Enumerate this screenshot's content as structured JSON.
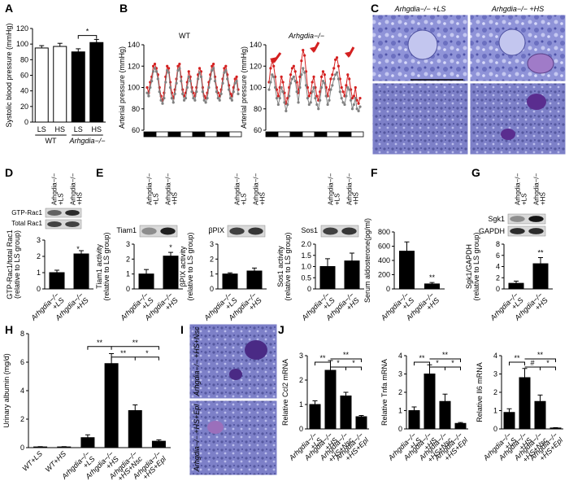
{
  "panel_letters": [
    "A",
    "B",
    "C",
    "D",
    "E",
    "F",
    "G",
    "H",
    "I",
    "J"
  ],
  "colors": {
    "red": "#d42020",
    "gray": "#808080",
    "histo_purple": "#7a7fc9",
    "black": "#000000",
    "white": "#ffffff"
  },
  "chart_data": [
    {
      "panel": "A",
      "type": "bar",
      "ylabel": "Systolic blood pressure (mmHg)",
      "ylim": [
        0,
        120
      ],
      "yticks": [
        "0",
        "20",
        "40",
        "60",
        "80",
        "100",
        "120"
      ],
      "categories": [
        "LS",
        "HS",
        "LS",
        "HS"
      ],
      "groups": [
        "WT",
        "Arhgdia−/−"
      ],
      "values": [
        95,
        97,
        90,
        102
      ],
      "errors": [
        3,
        4,
        4,
        4
      ],
      "fills": [
        "#ffffff",
        "#ffffff",
        "#000000",
        "#000000"
      ],
      "annotations": [
        "*"
      ]
    },
    {
      "panel": "B-WT",
      "type": "line",
      "title": "WT",
      "ylabel": "Arterial pressure (mmHg)",
      "ylim": [
        60,
        140
      ],
      "yticks": [
        "60",
        "80",
        "100",
        "120",
        "140"
      ],
      "series": [
        {
          "color": "red",
          "values": [
            100,
            95,
            105,
            110,
            120,
            122,
            118,
            112,
            100,
            92,
            88,
            95,
            110,
            120,
            118,
            105,
            95,
            90,
            98,
            108,
            120,
            122,
            110,
            98,
            92,
            95,
            105,
            115,
            110,
            100,
            95,
            92,
            100,
            112,
            118,
            115,
            100,
            92,
            90,
            95,
            105,
            112,
            120,
            122,
            110,
            100,
            95,
            92,
            98,
            108,
            118,
            120,
            112,
            102,
            94,
            92,
            100,
            108,
            110,
            98
          ]
        },
        {
          "color": "gray",
          "values": [
            95,
            92,
            100,
            106,
            115,
            118,
            115,
            108,
            96,
            88,
            85,
            90,
            105,
            116,
            114,
            100,
            90,
            86,
            94,
            104,
            116,
            118,
            106,
            94,
            88,
            90,
            100,
            110,
            106,
            96,
            90,
            88,
            96,
            108,
            114,
            110,
            96,
            88,
            86,
            90,
            100,
            108,
            116,
            118,
            106,
            96,
            90,
            88,
            94,
            104,
            114,
            116,
            108,
            98,
            90,
            88,
            96,
            104,
            106,
            94
          ]
        }
      ],
      "daynight_bar": [
        1,
        0,
        1,
        0,
        1,
        0,
        1,
        0
      ]
    },
    {
      "panel": "B-KO",
      "type": "line",
      "title": "Arhgdia−/−",
      "ylabel": "Arterial pressure (mmHg)",
      "ylim": [
        60,
        140
      ],
      "yticks": [
        "60",
        "80",
        "100",
        "120",
        "140"
      ],
      "series": [
        {
          "color": "red",
          "values": [
            105,
            118,
            125,
            120,
            110,
            98,
            92,
            100,
            110,
            105,
            95,
            85,
            90,
            100,
            112,
            118,
            120,
            115,
            105,
            95,
            110,
            125,
            135,
            130,
            115,
            100,
            92,
            95,
            105,
            110,
            100,
            92,
            88,
            96,
            110,
            115,
            112,
            100,
            92,
            98,
            108,
            112,
            118,
            126,
            128,
            120,
            108,
            100,
            96,
            92,
            102,
            112,
            108,
            98,
            90,
            92,
            100,
            88,
            85,
            90
          ]
        },
        {
          "color": "gray",
          "values": [
            98,
            105,
            112,
            110,
            100,
            90,
            84,
            90,
            100,
            96,
            86,
            78,
            84,
            92,
            104,
            108,
            110,
            106,
            96,
            86,
            100,
            112,
            118,
            114,
            102,
            90,
            84,
            86,
            96,
            100,
            90,
            84,
            80,
            88,
            100,
            106,
            104,
            92,
            84,
            88,
            98,
            102,
            108,
            112,
            114,
            108,
            96,
            90,
            86,
            84,
            92,
            100,
            98,
            88,
            80,
            84,
            90,
            80,
            78,
            82
          ]
        }
      ],
      "daynight_bar": [
        1,
        0,
        1,
        0,
        1,
        0,
        1,
        0
      ]
    },
    {
      "panel": "D",
      "type": "bar",
      "ylabel": "GTP-Rac1/total Rac1 (relative to LS group)",
      "ylim": [
        0,
        3
      ],
      "yticks": [
        "0",
        "1",
        "2",
        "3"
      ],
      "categories": [
        "Arhgdia−/−\n+LS",
        "Arhgdia−/−\n+HS"
      ],
      "values": [
        1.0,
        2.15
      ],
      "errors": [
        0.15,
        0.2
      ],
      "annotations": [
        "*"
      ]
    },
    {
      "panel": "E-Tiam1",
      "type": "bar",
      "ylabel": "Tiam1 activity (relative to LS group)",
      "ylim": [
        0,
        3
      ],
      "yticks": [
        "0",
        "1",
        "2",
        "3"
      ],
      "categories": [
        "Arhgdia−/−\n+LS",
        "Arhgdia−/−\n+HS"
      ],
      "values": [
        1.0,
        2.2
      ],
      "errors": [
        0.3,
        0.25
      ],
      "annotations": [
        "*"
      ]
    },
    {
      "panel": "E-bPIX",
      "type": "bar",
      "ylabel": "βPIX activity (relative to LS group)",
      "ylim": [
        0,
        3
      ],
      "yticks": [
        "0",
        "1",
        "2",
        "3"
      ],
      "categories": [
        "Arhgdia−/−\n+LS",
        "Arhgdia−/−\n+HS"
      ],
      "values": [
        1.0,
        1.2
      ],
      "errors": [
        0.08,
        0.2
      ],
      "annotations": []
    },
    {
      "panel": "E-Sos1",
      "type": "bar",
      "ylabel": "Sos1 activity (relative to LS group)",
      "ylim": [
        0,
        2
      ],
      "yticks": [
        "0",
        "0.5",
        "1.0",
        "1.5",
        "2.0"
      ],
      "categories": [
        "Arhgdia−/−\n+LS",
        "Arhgdia−/−\n+HS"
      ],
      "values": [
        1.0,
        1.25
      ],
      "errors": [
        0.35,
        0.35
      ],
      "annotations": []
    },
    {
      "panel": "F",
      "type": "bar",
      "ylabel": "Serum aldosterone(pg/ml)",
      "ylim": [
        0,
        800
      ],
      "yticks": [
        "0",
        "200",
        "400",
        "600",
        "800"
      ],
      "categories": [
        "Arhgdia−/−\n+LS",
        "Arhgdia−/−\n+HS"
      ],
      "values": [
        530,
        70
      ],
      "errors": [
        130,
        20
      ],
      "annotations": [
        "**"
      ]
    },
    {
      "panel": "G",
      "type": "bar",
      "ylabel": "Sgk1/GAPDH (relative to LS group)",
      "ylim": [
        0,
        8
      ],
      "yticks": [
        "0",
        "2",
        "4",
        "6",
        "8"
      ],
      "categories": [
        "Arhgdia−/−\n+LS",
        "Arhgdia−/−\n+HS"
      ],
      "values": [
        1.0,
        4.5
      ],
      "errors": [
        0.4,
        1.1
      ],
      "annotations": [
        "**"
      ]
    },
    {
      "panel": "H",
      "type": "bar",
      "ylabel": "Urinary albumin (mg/d)",
      "ylim": [
        0,
        8
      ],
      "yticks": [
        "0",
        "2",
        "4",
        "6",
        "8"
      ],
      "categories": [
        "WT+LS",
        "WT+HS",
        "Arhgdia−/−\n+LS",
        "Arhgdia−/−\n+HS",
        "Arhgdia−/−\n+HS+Nsc",
        "Arhgdia−/−\n+HS+Epl"
      ],
      "values": [
        0.05,
        0.05,
        0.7,
        5.9,
        2.6,
        0.45
      ],
      "errors": [
        0.02,
        0.02,
        0.2,
        0.7,
        0.4,
        0.1
      ],
      "annotations": [
        "**",
        "**",
        "**",
        "*"
      ]
    },
    {
      "panel": "J-Ccl2",
      "type": "bar",
      "ylabel": "Relative Ccl2 mRNA",
      "ylim": [
        0,
        3
      ],
      "yticks": [
        "0",
        "1",
        "2",
        "3"
      ],
      "categories": [
        "Arhgdia−/−\n+LS",
        "Arhgdia−/−\n+HS",
        "Arhgdia−/−\n+HS+Nsc",
        "Arhgdia−/−\n+HS+Epl"
      ],
      "values": [
        1.0,
        2.4,
        1.35,
        0.5
      ],
      "errors": [
        0.15,
        0.4,
        0.15,
        0.05
      ],
      "annotations": [
        "**",
        "*",
        "*",
        "**"
      ]
    },
    {
      "panel": "J-Tnfa",
      "type": "bar",
      "ylabel": "Relative Tnfa mRNA",
      "ylim": [
        0,
        4
      ],
      "yticks": [
        "0",
        "1",
        "2",
        "3",
        "4"
      ],
      "categories": [
        "Arhgdia−/−\n+LS",
        "Arhgdia−/−\n+HS",
        "Arhgdia−/−\n+HS+Nsc",
        "Arhgdia−/−\n+HS+Epl"
      ],
      "values": [
        1.0,
        3.0,
        1.5,
        0.3
      ],
      "errors": [
        0.2,
        0.5,
        0.4,
        0.05
      ],
      "annotations": [
        "**",
        "*",
        "*",
        "**"
      ]
    },
    {
      "panel": "J-Il6",
      "type": "bar",
      "ylabel": "Relative Il6 mRNA",
      "ylim": [
        0,
        4
      ],
      "yticks": [
        "0",
        "1",
        "2",
        "3",
        "4"
      ],
      "categories": [
        "Arhgdia−/−\n+LS",
        "Arhgdia−/−\n+HS",
        "Arhgdia−/−\n+HS+Nsc",
        "Arhgdia−/−\n+HS+Epl"
      ],
      "values": [
        0.9,
        2.8,
        1.5,
        0.05
      ],
      "errors": [
        0.2,
        0.5,
        0.35,
        0.02
      ],
      "annotations": [
        "**",
        "#",
        "*",
        "**"
      ]
    }
  ],
  "blots": {
    "D": {
      "rows": [
        "GTP-Rac1",
        "Total Rac1"
      ],
      "lanes": [
        "Arhgdia−/−\n+LS",
        "Arhgdia−/−\n+HS"
      ]
    },
    "E-Tiam1": {
      "rows": [
        "Tiam1"
      ],
      "lanes": [
        "Arhgdia−/−\n+LS",
        "Arhgdia−/−\n+HS"
      ]
    },
    "E-bPIX": {
      "rows": [
        "βPIX"
      ],
      "lanes": [
        "Arhgdia−/−\n+LS",
        "Arhgdia−/−\n+HS"
      ]
    },
    "E-Sos1": {
      "rows": [
        "Sos1"
      ],
      "lanes": [
        "Arhgdia−/−\n+LS",
        "Arhgdia−/−\n+HS"
      ]
    },
    "G": {
      "rows": [
        "Sgk1",
        "GAPDH"
      ],
      "lanes": [
        "Arhgdia−/−\n+LS",
        "Arhgdia−/−\n+HS"
      ]
    }
  },
  "histology": {
    "C": {
      "labels": [
        "Arhgdia−/− +LS",
        "Arhgdia−/− +HS"
      ]
    },
    "I": {
      "labels": [
        "Arhgdia−/− +HS+Nsc",
        "Arhgdia−/− +HS+Epl"
      ]
    }
  }
}
